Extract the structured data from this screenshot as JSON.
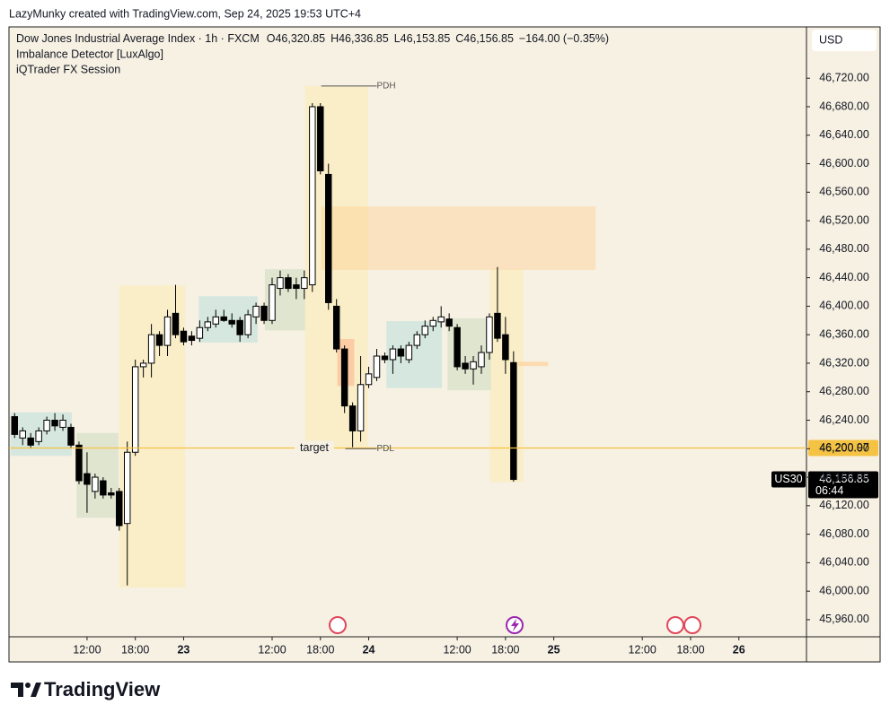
{
  "top_bar": "LazyMunky created with TradingView.com, Sep 24, 2025 19:53 UTC+4",
  "footer_brand": "TradingView",
  "chart_data": {
    "type": "candlestick",
    "title": "Dow Jones Industrial Average Index · 1h · FXCM",
    "ohlc_legend": [
      "O46,320.85",
      "H46,336.85",
      "L46,153.85",
      "C46,156.85",
      "−164.00 (−0.35%)"
    ],
    "indicators": [
      "Imbalance Detector [LuxAlgo]",
      "iQTrader FX Session"
    ],
    "currency": "USD",
    "up_color": "#ffffff",
    "down_color": "#000000",
    "open": [
      46245,
      46215,
      46215,
      46210,
      46225,
      46240,
      46230,
      46230,
      46205,
      46165,
      46140,
      46155,
      46138,
      46140,
      46095,
      46195,
      46315,
      46320,
      46360,
      46345,
      46390,
      46365,
      46358,
      46355,
      46370,
      46375,
      46385,
      46380,
      46380,
      46360,
      46385,
      46400,
      46380,
      46425,
      46440,
      46430,
      46425,
      46430,
      46680,
      46585,
      46400,
      46340,
      46260,
      46225,
      46290,
      46300,
      46330,
      46325,
      46340,
      46325,
      46345,
      46360,
      46372,
      46378,
      46382,
      46370,
      46320,
      46312,
      46315,
      46335,
      46390,
      46360,
      46320.85
    ],
    "high": [
      46250,
      46230,
      46222,
      46230,
      46245,
      46250,
      46248,
      46235,
      46210,
      46195,
      46165,
      46160,
      46145,
      46145,
      46210,
      46325,
      46325,
      46375,
      46365,
      46395,
      46430,
      46370,
      46365,
      46380,
      46385,
      46395,
      46395,
      46390,
      46385,
      46395,
      46405,
      46405,
      46440,
      46450,
      46445,
      46440,
      46450,
      46685,
      46685,
      46600,
      46410,
      46345,
      46265,
      46330,
      46315,
      46340,
      46335,
      46345,
      46345,
      46350,
      46365,
      46380,
      46385,
      46400,
      46390,
      46375,
      46330,
      46330,
      46345,
      46390,
      46455,
      46385,
      46336.85
    ],
    "low": [
      46215,
      46205,
      46200,
      46205,
      46220,
      46225,
      46225,
      46200,
      46150,
      46110,
      46130,
      46130,
      46130,
      46085,
      46008,
      46190,
      46300,
      46300,
      46330,
      46330,
      46355,
      46345,
      46345,
      46350,
      46365,
      46370,
      46378,
      46370,
      46350,
      46355,
      46375,
      46375,
      46375,
      46415,
      46420,
      46410,
      46410,
      46420,
      46585,
      46395,
      46335,
      46250,
      46202,
      46210,
      46285,
      46295,
      46320,
      46305,
      46320,
      46320,
      46340,
      46355,
      46365,
      46370,
      46365,
      46310,
      46305,
      46290,
      46305,
      46325,
      46350,
      46305,
      46153.85
    ],
    "close": [
      46220,
      46225,
      46205,
      46225,
      46240,
      46232,
      46240,
      46205,
      46155,
      46150,
      46160,
      46135,
      46135,
      46092,
      46195,
      46315,
      46320,
      46360,
      46345,
      46385,
      46360,
      46350,
      46352,
      46370,
      46378,
      46385,
      46380,
      46375,
      46360,
      46388,
      46400,
      46380,
      46430,
      46440,
      46425,
      46425,
      46440,
      46680,
      46590,
      46405,
      46340,
      46260,
      46225,
      46290,
      46305,
      46330,
      46325,
      46340,
      46330,
      46345,
      46360,
      46372,
      46380,
      46385,
      46372,
      46315,
      46312,
      46322,
      46335,
      46385,
      46355,
      46325,
      46156.85
    ],
    "xlim": [
      -0.7,
      98.4
    ],
    "xticks": [
      {
        "value": 9,
        "label": "12:00"
      },
      {
        "value": 15,
        "label": "18:00"
      },
      {
        "value": 21,
        "label": "23"
      },
      {
        "value": 32,
        "label": "12:00"
      },
      {
        "value": 38,
        "label": "18:00"
      },
      {
        "value": 44,
        "label": "24"
      },
      {
        "value": 55,
        "label": "12:00"
      },
      {
        "value": 61,
        "label": "18:00"
      },
      {
        "value": 67,
        "label": "25"
      },
      {
        "value": 78,
        "label": "12:00"
      },
      {
        "value": 84,
        "label": "18:00"
      },
      {
        "value": 90,
        "label": "26"
      }
    ],
    "ylim": [
      45936,
      46792
    ],
    "yticks": [
      {
        "value": 45960,
        "label": "45,960.00"
      },
      {
        "value": 46000,
        "label": "46,000.00"
      },
      {
        "value": 46040,
        "label": "46,040.00"
      },
      {
        "value": 46080,
        "label": "46,080.00"
      },
      {
        "value": 46120,
        "label": "46,120.00"
      },
      {
        "value": 46160,
        "label": "46,160.00"
      },
      {
        "value": 46200,
        "label": "46,200.00"
      },
      {
        "value": 46240,
        "label": "46,240.00"
      },
      {
        "value": 46280,
        "label": "46,280.00"
      },
      {
        "value": 46320,
        "label": "46,320.00"
      },
      {
        "value": 46360,
        "label": "46,360.00"
      },
      {
        "value": 46400,
        "label": "46,400.00"
      },
      {
        "value": 46440,
        "label": "46,440.00"
      },
      {
        "value": 46480,
        "label": "46,480.00"
      },
      {
        "value": 46520,
        "label": "46,520.00"
      },
      {
        "value": 46560,
        "label": "46,560.00"
      },
      {
        "value": 46600,
        "label": "46,600.00"
      },
      {
        "value": 46640,
        "label": "46,640.00"
      },
      {
        "value": 46680,
        "label": "46,680.00"
      },
      {
        "value": 46720,
        "label": "46,720.00"
      }
    ],
    "grid": false,
    "zones": [
      {
        "x": [
          13.0,
          21.2
        ],
        "y": [
          46005,
          46429
        ],
        "color": "rgba(255,232,150,0.35)"
      },
      {
        "x": [
          36.1,
          43.9
        ],
        "y": [
          46200,
          46709
        ],
        "color": "rgba(255,232,150,0.35)"
      },
      {
        "x": [
          59.1,
          63.2
        ],
        "y": [
          46153,
          46452
        ],
        "color": "rgba(255,232,150,0.35)"
      },
      {
        "x": [
          -0.49,
          7.1
        ],
        "y": [
          46190,
          46251
        ],
        "color": "rgba(170,220,215,0.45)"
      },
      {
        "x": [
          7.7,
          12.9
        ],
        "y": [
          46103,
          46222
        ],
        "color": "rgba(195,215,185,0.45)"
      },
      {
        "x": [
          22.9,
          30.2
        ],
        "y": [
          46349,
          46414
        ],
        "color": "rgba(170,220,215,0.45)"
      },
      {
        "x": [
          31.1,
          36.1
        ],
        "y": [
          46366,
          46452
        ],
        "color": "rgba(195,215,185,0.45)"
      },
      {
        "x": [
          46.2,
          53.1
        ],
        "y": [
          46285,
          46379
        ],
        "color": "rgba(170,220,215,0.45)"
      },
      {
        "x": [
          53.8,
          59.2
        ],
        "y": [
          46282,
          46383
        ],
        "color": "rgba(195,215,185,0.45)"
      },
      {
        "x": [
          38.1,
          72.2
        ],
        "y": [
          46451,
          46540
        ],
        "color": "rgba(255,205,140,0.4)"
      },
      {
        "x": [
          40.1,
          42.2
        ],
        "y": [
          46288,
          46354
        ],
        "color": "rgba(255,140,100,0.35)"
      },
      {
        "x": [
          62.6,
          66.3
        ],
        "y": [
          46316,
          46322
        ],
        "color": "rgba(255,205,140,0.6)"
      }
    ],
    "levels": [
      {
        "name": "PDH",
        "value": 46709,
        "x": [
          38.1,
          45.0
        ]
      },
      {
        "name": "PDL",
        "value": 46200,
        "x": [
          41.1,
          45.0
        ]
      }
    ],
    "target": {
      "name": "target",
      "value": 46200.97,
      "label": "46,200.97",
      "color": "#f5c343"
    },
    "last_price": {
      "symbol": "US30",
      "value": 46156.85,
      "label": "46,156.85",
      "countdown": "06:44"
    }
  }
}
